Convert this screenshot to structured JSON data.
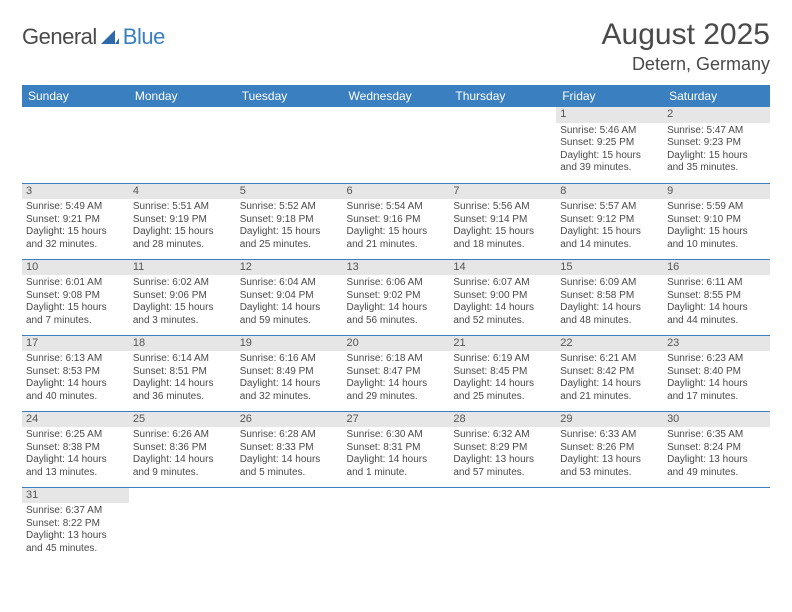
{
  "logo": {
    "part1": "General",
    "part2": "Blue"
  },
  "title": "August 2025",
  "location": "Detern, Germany",
  "colors": {
    "header_bg": "#3a7fbf",
    "header_text": "#ffffff",
    "daynum_bg": "#e6e6e6",
    "row_border": "#3a7fbf",
    "text": "#4a4a4a",
    "logo_accent": "#3a7fbf"
  },
  "weekday_labels": [
    "Sunday",
    "Monday",
    "Tuesday",
    "Wednesday",
    "Thursday",
    "Friday",
    "Saturday"
  ],
  "weeks": [
    [
      null,
      null,
      null,
      null,
      null,
      {
        "n": "1",
        "sr": "Sunrise: 5:46 AM",
        "ss": "Sunset: 9:25 PM",
        "d1": "Daylight: 15 hours",
        "d2": "and 39 minutes."
      },
      {
        "n": "2",
        "sr": "Sunrise: 5:47 AM",
        "ss": "Sunset: 9:23 PM",
        "d1": "Daylight: 15 hours",
        "d2": "and 35 minutes."
      }
    ],
    [
      {
        "n": "3",
        "sr": "Sunrise: 5:49 AM",
        "ss": "Sunset: 9:21 PM",
        "d1": "Daylight: 15 hours",
        "d2": "and 32 minutes."
      },
      {
        "n": "4",
        "sr": "Sunrise: 5:51 AM",
        "ss": "Sunset: 9:19 PM",
        "d1": "Daylight: 15 hours",
        "d2": "and 28 minutes."
      },
      {
        "n": "5",
        "sr": "Sunrise: 5:52 AM",
        "ss": "Sunset: 9:18 PM",
        "d1": "Daylight: 15 hours",
        "d2": "and 25 minutes."
      },
      {
        "n": "6",
        "sr": "Sunrise: 5:54 AM",
        "ss": "Sunset: 9:16 PM",
        "d1": "Daylight: 15 hours",
        "d2": "and 21 minutes."
      },
      {
        "n": "7",
        "sr": "Sunrise: 5:56 AM",
        "ss": "Sunset: 9:14 PM",
        "d1": "Daylight: 15 hours",
        "d2": "and 18 minutes."
      },
      {
        "n": "8",
        "sr": "Sunrise: 5:57 AM",
        "ss": "Sunset: 9:12 PM",
        "d1": "Daylight: 15 hours",
        "d2": "and 14 minutes."
      },
      {
        "n": "9",
        "sr": "Sunrise: 5:59 AM",
        "ss": "Sunset: 9:10 PM",
        "d1": "Daylight: 15 hours",
        "d2": "and 10 minutes."
      }
    ],
    [
      {
        "n": "10",
        "sr": "Sunrise: 6:01 AM",
        "ss": "Sunset: 9:08 PM",
        "d1": "Daylight: 15 hours",
        "d2": "and 7 minutes."
      },
      {
        "n": "11",
        "sr": "Sunrise: 6:02 AM",
        "ss": "Sunset: 9:06 PM",
        "d1": "Daylight: 15 hours",
        "d2": "and 3 minutes."
      },
      {
        "n": "12",
        "sr": "Sunrise: 6:04 AM",
        "ss": "Sunset: 9:04 PM",
        "d1": "Daylight: 14 hours",
        "d2": "and 59 minutes."
      },
      {
        "n": "13",
        "sr": "Sunrise: 6:06 AM",
        "ss": "Sunset: 9:02 PM",
        "d1": "Daylight: 14 hours",
        "d2": "and 56 minutes."
      },
      {
        "n": "14",
        "sr": "Sunrise: 6:07 AM",
        "ss": "Sunset: 9:00 PM",
        "d1": "Daylight: 14 hours",
        "d2": "and 52 minutes."
      },
      {
        "n": "15",
        "sr": "Sunrise: 6:09 AM",
        "ss": "Sunset: 8:58 PM",
        "d1": "Daylight: 14 hours",
        "d2": "and 48 minutes."
      },
      {
        "n": "16",
        "sr": "Sunrise: 6:11 AM",
        "ss": "Sunset: 8:55 PM",
        "d1": "Daylight: 14 hours",
        "d2": "and 44 minutes."
      }
    ],
    [
      {
        "n": "17",
        "sr": "Sunrise: 6:13 AM",
        "ss": "Sunset: 8:53 PM",
        "d1": "Daylight: 14 hours",
        "d2": "and 40 minutes."
      },
      {
        "n": "18",
        "sr": "Sunrise: 6:14 AM",
        "ss": "Sunset: 8:51 PM",
        "d1": "Daylight: 14 hours",
        "d2": "and 36 minutes."
      },
      {
        "n": "19",
        "sr": "Sunrise: 6:16 AM",
        "ss": "Sunset: 8:49 PM",
        "d1": "Daylight: 14 hours",
        "d2": "and 32 minutes."
      },
      {
        "n": "20",
        "sr": "Sunrise: 6:18 AM",
        "ss": "Sunset: 8:47 PM",
        "d1": "Daylight: 14 hours",
        "d2": "and 29 minutes."
      },
      {
        "n": "21",
        "sr": "Sunrise: 6:19 AM",
        "ss": "Sunset: 8:45 PM",
        "d1": "Daylight: 14 hours",
        "d2": "and 25 minutes."
      },
      {
        "n": "22",
        "sr": "Sunrise: 6:21 AM",
        "ss": "Sunset: 8:42 PM",
        "d1": "Daylight: 14 hours",
        "d2": "and 21 minutes."
      },
      {
        "n": "23",
        "sr": "Sunrise: 6:23 AM",
        "ss": "Sunset: 8:40 PM",
        "d1": "Daylight: 14 hours",
        "d2": "and 17 minutes."
      }
    ],
    [
      {
        "n": "24",
        "sr": "Sunrise: 6:25 AM",
        "ss": "Sunset: 8:38 PM",
        "d1": "Daylight: 14 hours",
        "d2": "and 13 minutes."
      },
      {
        "n": "25",
        "sr": "Sunrise: 6:26 AM",
        "ss": "Sunset: 8:36 PM",
        "d1": "Daylight: 14 hours",
        "d2": "and 9 minutes."
      },
      {
        "n": "26",
        "sr": "Sunrise: 6:28 AM",
        "ss": "Sunset: 8:33 PM",
        "d1": "Daylight: 14 hours",
        "d2": "and 5 minutes."
      },
      {
        "n": "27",
        "sr": "Sunrise: 6:30 AM",
        "ss": "Sunset: 8:31 PM",
        "d1": "Daylight: 14 hours",
        "d2": "and 1 minute."
      },
      {
        "n": "28",
        "sr": "Sunrise: 6:32 AM",
        "ss": "Sunset: 8:29 PM",
        "d1": "Daylight: 13 hours",
        "d2": "and 57 minutes."
      },
      {
        "n": "29",
        "sr": "Sunrise: 6:33 AM",
        "ss": "Sunset: 8:26 PM",
        "d1": "Daylight: 13 hours",
        "d2": "and 53 minutes."
      },
      {
        "n": "30",
        "sr": "Sunrise: 6:35 AM",
        "ss": "Sunset: 8:24 PM",
        "d1": "Daylight: 13 hours",
        "d2": "and 49 minutes."
      }
    ],
    [
      {
        "n": "31",
        "sr": "Sunrise: 6:37 AM",
        "ss": "Sunset: 8:22 PM",
        "d1": "Daylight: 13 hours",
        "d2": "and 45 minutes."
      },
      null,
      null,
      null,
      null,
      null,
      null
    ]
  ]
}
